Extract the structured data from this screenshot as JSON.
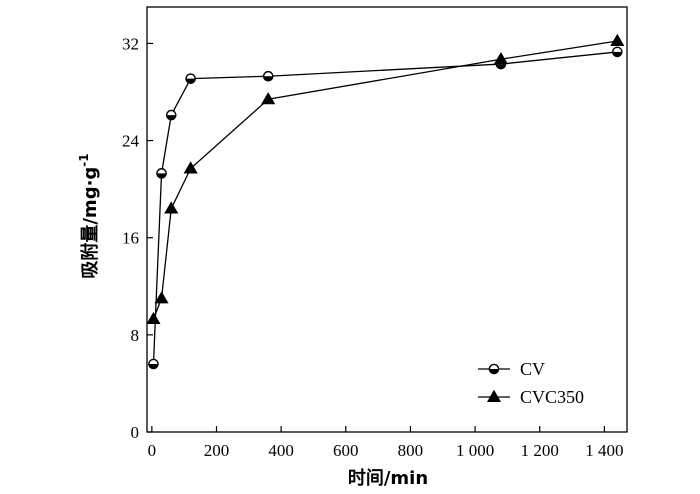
{
  "chart_data": {
    "type": "line",
    "title": "",
    "xlabel": "时间/min",
    "ylabel": "吸附量/mg·g",
    "ylabel_sup": "-1",
    "xlim": [
      -15,
      1470
    ],
    "ylim": [
      0,
      35
    ],
    "x_ticks": [
      0,
      200,
      400,
      600,
      800,
      1000,
      1200,
      1400
    ],
    "x_tick_labels": [
      "0",
      "200",
      "400",
      "600",
      "800",
      "1 000",
      "1 200",
      "1 400"
    ],
    "y_ticks": [
      0,
      8,
      16,
      24,
      32
    ],
    "y_tick_labels": [
      "0",
      "8",
      "16",
      "24",
      "32"
    ],
    "grid": false,
    "legend_position": "lower-right",
    "series": [
      {
        "name": "CV",
        "marker": "half-filled-circle",
        "x": [
          5,
          30,
          60,
          120,
          360,
          1080,
          1440
        ],
        "y": [
          5.6,
          21.3,
          26.1,
          29.1,
          29.3,
          30.3,
          31.3
        ]
      },
      {
        "name": "CVC350",
        "marker": "filled-triangle",
        "x": [
          5,
          30,
          60,
          120,
          360,
          1080,
          1440
        ],
        "y": [
          9.3,
          11.0,
          18.4,
          21.7,
          27.4,
          30.7,
          32.2
        ]
      }
    ]
  }
}
